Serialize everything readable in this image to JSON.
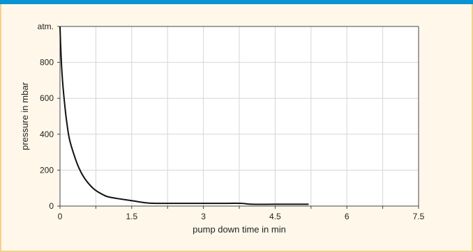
{
  "colors": {
    "top_bar": "#0a93d2",
    "border": "#f6cf8b",
    "frame_background": "#fff8ea",
    "plot_background": "#ffffff",
    "grid": "#d6d6d6",
    "axis": "#444444",
    "curve": "#111111"
  },
  "chart_data": {
    "type": "line",
    "title": "",
    "xlabel": "pump down time in min",
    "ylabel": "pressure in mbar",
    "xlim": [
      0,
      7.5
    ],
    "ylim": [
      0,
      1000
    ],
    "x_ticks": [
      {
        "value": 0,
        "label": "0"
      },
      {
        "value": 1.5,
        "label": "1.5"
      },
      {
        "value": 3,
        "label": "3"
      },
      {
        "value": 4.5,
        "label": "4.5"
      },
      {
        "value": 6,
        "label": "6"
      },
      {
        "value": 7.5,
        "label": "7.5"
      }
    ],
    "y_ticks": [
      {
        "value": 0,
        "label": "0"
      },
      {
        "value": 200,
        "label": "200"
      },
      {
        "value": 400,
        "label": "400"
      },
      {
        "value": 600,
        "label": "600"
      },
      {
        "value": 800,
        "label": "800"
      },
      {
        "value": 1000,
        "label": "atm."
      }
    ],
    "x_minor_step": 0.75,
    "grid": true,
    "series": [
      {
        "x": [
          0,
          0.02,
          0.05,
          0.1,
          0.15,
          0.2,
          0.3,
          0.4,
          0.5,
          0.6,
          0.7,
          0.8,
          0.9,
          1.0,
          1.2,
          1.5,
          1.8,
          2.0,
          2.5,
          3.0,
          3.5,
          3.8,
          4.0,
          4.5,
          5.0,
          5.2
        ],
        "y": [
          1000,
          850,
          710,
          560,
          450,
          370,
          280,
          210,
          160,
          125,
          97,
          78,
          63,
          52,
          42,
          30,
          18,
          15,
          15,
          15,
          15,
          15,
          10,
          10,
          10,
          10
        ]
      }
    ]
  }
}
